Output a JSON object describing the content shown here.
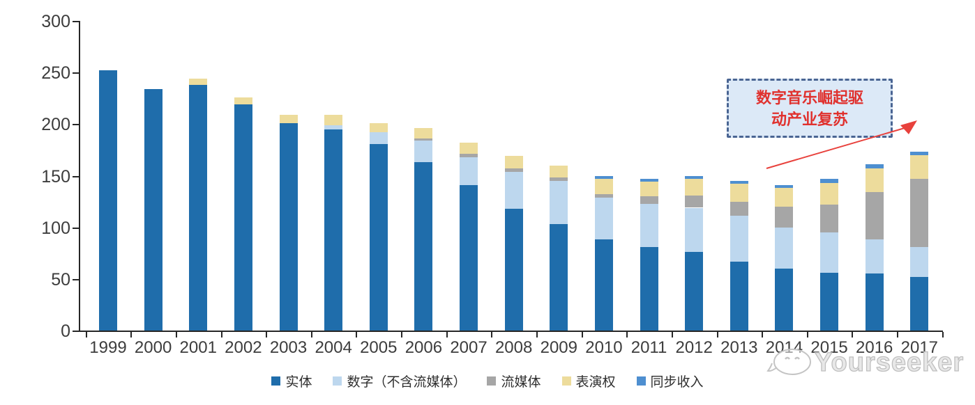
{
  "chart_data": {
    "type": "bar",
    "stacked": true,
    "title": "",
    "xlabel": "",
    "ylabel": "",
    "categories": [
      "1999",
      "2000",
      "2001",
      "2002",
      "2003",
      "2004",
      "2005",
      "2006",
      "2007",
      "2008",
      "2009",
      "2010",
      "2011",
      "2012",
      "2013",
      "2014",
      "2015",
      "2016",
      "2017"
    ],
    "series": [
      {
        "name": "实体",
        "color": "#1f6dab",
        "values": [
          252,
          234,
          238,
          219,
          201,
          195,
          181,
          163,
          141,
          118,
          103,
          88,
          81,
          76,
          67,
          60,
          56,
          55,
          52
        ]
      },
      {
        "name": "数字（不含流媒体）",
        "color": "#bdd7ee",
        "values": [
          0,
          0,
          0,
          0,
          0,
          4,
          11,
          21,
          27,
          36,
          42,
          41,
          42,
          43,
          44,
          40,
          39,
          33,
          29
        ]
      },
      {
        "name": "流媒体",
        "color": "#a6a6a6",
        "values": [
          0,
          0,
          0,
          0,
          0,
          0,
          0,
          2,
          3,
          3,
          3,
          3,
          7,
          12,
          14,
          20,
          27,
          46,
          66
        ]
      },
      {
        "name": "表演权",
        "color": "#eddc9c",
        "values": [
          0,
          0,
          6,
          7,
          8,
          10,
          9,
          10,
          11,
          12,
          12,
          15,
          14,
          16,
          17,
          18,
          21,
          23,
          23
        ]
      },
      {
        "name": "同步收入",
        "color": "#4e8fd0",
        "values": [
          0,
          0,
          0,
          0,
          0,
          0,
          0,
          0,
          0,
          0,
          0,
          3,
          3,
          3,
          3,
          3,
          4,
          4,
          3
        ]
      }
    ],
    "ylim": [
      0,
      300
    ],
    "yticks": [
      0,
      50,
      100,
      150,
      200,
      250,
      300
    ],
    "grid": false,
    "legend_position": "bottom"
  },
  "annotation": {
    "line1": "数字音乐崛起驱",
    "line2": "动产业复苏"
  },
  "watermark": {
    "text": "Yourseeker"
  },
  "colors": {
    "axis": "#262626",
    "tick_label": "#3d3d3d",
    "annotation_border": "#4a6593",
    "annotation_bg": "#dce9f7",
    "annotation_text": "#e0312e",
    "arrow": "#e8413c"
  }
}
